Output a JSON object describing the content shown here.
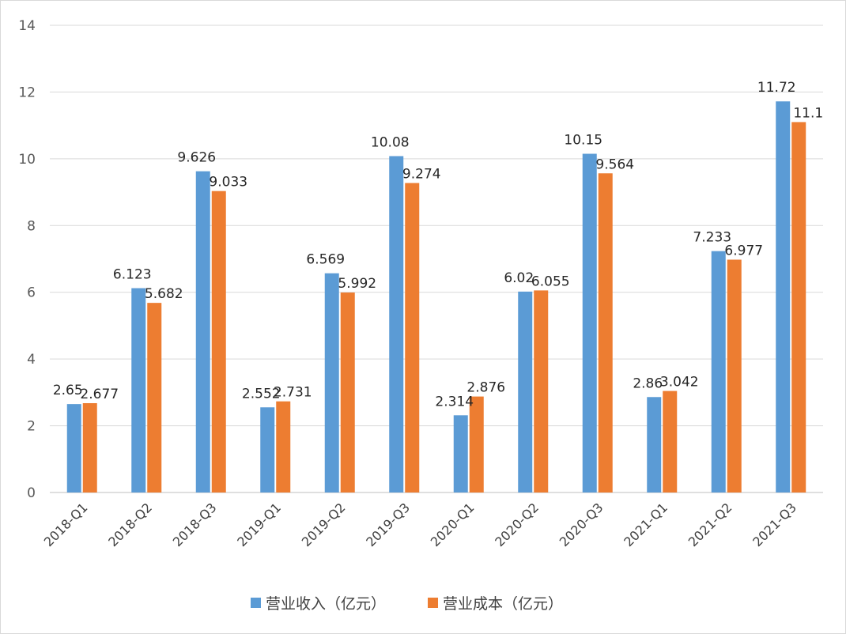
{
  "chart_data": {
    "type": "bar",
    "categories": [
      "2018-Q1",
      "2018-Q2",
      "2018-Q3",
      "2019-Q1",
      "2019-Q2",
      "2019-Q3",
      "2020-Q1",
      "2020-Q2",
      "2020-Q3",
      "2021-Q1",
      "2021-Q2",
      "2021-Q3"
    ],
    "series": [
      {
        "name": "营业收入（亿元）",
        "color": "#5b9bd5",
        "values": [
          2.65,
          6.123,
          9.626,
          2.552,
          6.569,
          10.08,
          2.314,
          6.02,
          10.15,
          2.86,
          7.233,
          11.72
        ],
        "labels": [
          "2.65",
          "6.123",
          "9.626",
          "2.552",
          "6.569",
          "10.08",
          "2.314",
          "6.02",
          "10.15",
          "2.86",
          "7.233",
          "11.72"
        ]
      },
      {
        "name": "营业成本（亿元）",
        "color": "#ed7d31",
        "values": [
          2.677,
          5.682,
          9.033,
          2.731,
          5.992,
          9.274,
          2.876,
          6.055,
          9.564,
          3.042,
          6.977,
          11.1
        ],
        "labels": [
          "2.677",
          "5.682",
          "9.033",
          "2.731",
          "5.992",
          "9.274",
          "2.876",
          "6.055",
          "9.564",
          "3.042",
          "6.977",
          "11.1"
        ]
      }
    ],
    "ylim": [
      0,
      14
    ],
    "yticks": [
      "0",
      "2",
      "4",
      "6",
      "8",
      "10",
      "12",
      "14"
    ],
    "grid": true,
    "legend_position": "bottom",
    "title": "",
    "xlabel": "",
    "ylabel": ""
  }
}
